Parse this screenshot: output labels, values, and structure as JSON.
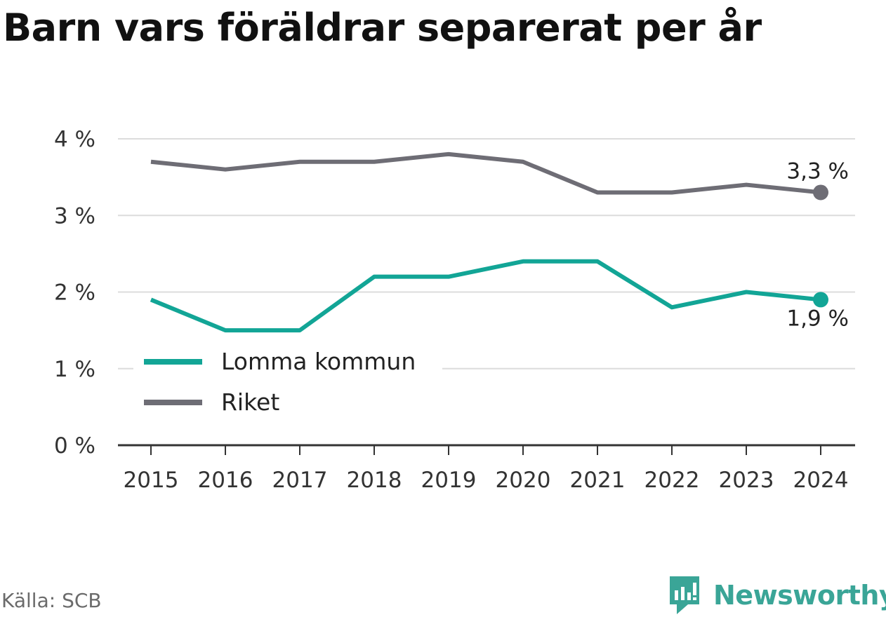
{
  "title": "Barn vars föräldrar separerat per år",
  "source": "Källa: SCB",
  "brand": "Newsworthy",
  "colors": {
    "lomma": "#12a596",
    "riket": "#6e6d75",
    "grid": "#dcdcdc",
    "axis": "#333333"
  },
  "chart_data": {
    "type": "line",
    "title": "Barn vars föräldrar separerat per år",
    "categories": [
      "2015",
      "2016",
      "2017",
      "2018",
      "2019",
      "2020",
      "2021",
      "2022",
      "2023",
      "2024"
    ],
    "series": [
      {
        "name": "Lomma kommun",
        "color": "#12a596",
        "values": [
          1.9,
          1.5,
          1.5,
          2.2,
          2.2,
          2.4,
          2.4,
          1.8,
          2.0,
          1.9
        ],
        "end_label": "1,9 %"
      },
      {
        "name": "Riket",
        "color": "#6e6d75",
        "values": [
          3.7,
          3.6,
          3.7,
          3.7,
          3.8,
          3.7,
          3.3,
          3.3,
          3.4,
          3.3
        ],
        "end_label": "3,3 %"
      }
    ],
    "ylim": [
      0,
      4
    ],
    "yticks": [
      0,
      1,
      2,
      3,
      4
    ],
    "ytick_labels": [
      "0 %",
      "1 %",
      "2 %",
      "3 %",
      "4 %"
    ],
    "grid": true,
    "legend_position": "bottom-left"
  }
}
